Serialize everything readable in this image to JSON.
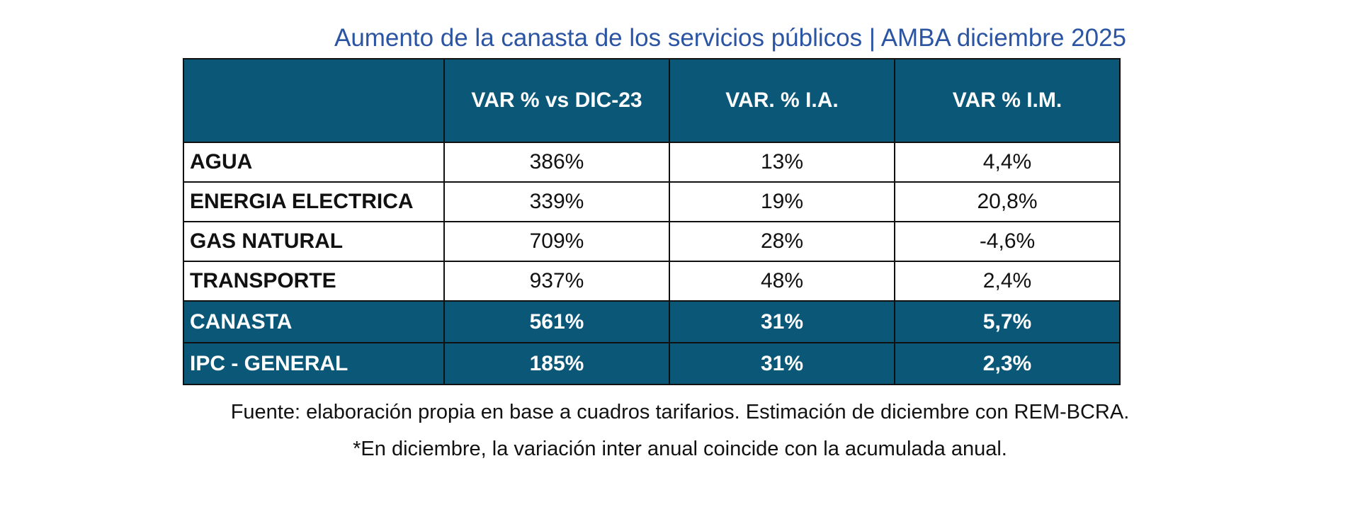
{
  "header": {
    "title": "Aumento de la canasta de los servicios públicos | AMBA diciembre 2025"
  },
  "table": {
    "columns": [
      "VAR % vs DIC-23",
      "VAR. % I.A.",
      "VAR % I.M."
    ],
    "rows": [
      [
        "AGUA",
        "386%",
        "13%",
        "4,4%"
      ],
      [
        "ENERGIA ELECTRICA",
        "339%",
        "19%",
        "20,8%"
      ],
      [
        "GAS NATURAL",
        "709%",
        "28%",
        "-4,6%"
      ],
      [
        "TRANSPORTE",
        "937%",
        "48%",
        "2,4%"
      ],
      [
        "CANASTA",
        "561%",
        "31%",
        "5,7%"
      ],
      [
        "IPC - GENERAL",
        "185%",
        "31%",
        "2,3%"
      ]
    ]
  },
  "footer": {
    "source": "Fuente: elaboración propia en base a cuadros tarifarios. Estimación de diciembre con REM-BCRA.",
    "note": "*En diciembre, la variación inter anual coincide con la acumulada anual."
  }
}
